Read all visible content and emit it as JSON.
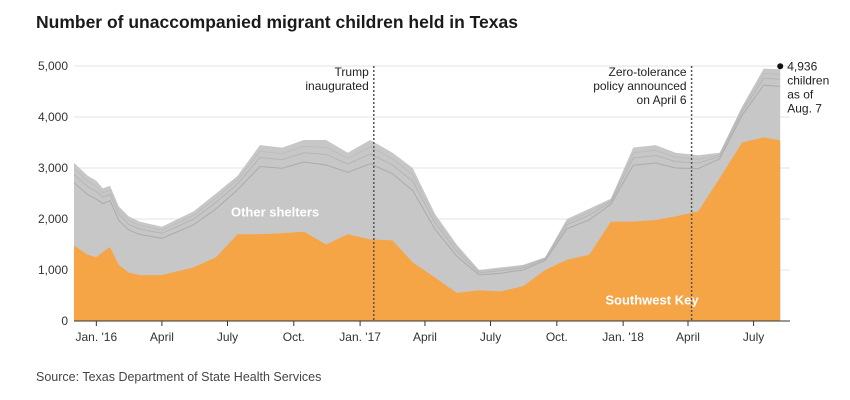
{
  "chart_data": {
    "type": "area",
    "title": "Number of unaccompanied migrant children held in Texas",
    "source": "Source: Texas Department of State Health Services",
    "y_ticks": [
      "0",
      "1,000",
      "2,000",
      "3,000",
      "4,000",
      "5,000"
    ],
    "y_tick_values": [
      0,
      1000,
      2000,
      3000,
      4000,
      5000
    ],
    "ylim": [
      0,
      5000
    ],
    "xlim": [
      "2015-12-01",
      "2018-08-15"
    ],
    "x_ticks": [
      {
        "label": "Jan. '16",
        "date": "2016-01-01"
      },
      {
        "label": "April",
        "date": "2016-04-01"
      },
      {
        "label": "July",
        "date": "2016-07-01"
      },
      {
        "label": "Oct.",
        "date": "2016-10-01"
      },
      {
        "label": "Jan. '17",
        "date": "2017-01-01"
      },
      {
        "label": "April",
        "date": "2017-04-01"
      },
      {
        "label": "July",
        "date": "2017-07-01"
      },
      {
        "label": "Oct.",
        "date": "2017-10-01"
      },
      {
        "label": "Jan. '18",
        "date": "2018-01-01"
      },
      {
        "label": "April",
        "date": "2018-04-01"
      },
      {
        "label": "July",
        "date": "2018-07-01"
      }
    ],
    "x": [
      "2015-12-01",
      "2015-12-20",
      "2016-01-01",
      "2016-01-10",
      "2016-01-20",
      "2016-02-01",
      "2016-02-15",
      "2016-03-01",
      "2016-04-01",
      "2016-05-15",
      "2016-06-15",
      "2016-07-15",
      "2016-08-15",
      "2016-09-15",
      "2016-10-15",
      "2016-11-15",
      "2016-12-15",
      "2017-01-15",
      "2017-02-15",
      "2017-03-15",
      "2017-04-15",
      "2017-05-15",
      "2017-06-15",
      "2017-07-15",
      "2017-08-15",
      "2017-09-15",
      "2017-10-15",
      "2017-11-15",
      "2017-12-15",
      "2018-01-15",
      "2018-02-15",
      "2018-03-15",
      "2018-04-15",
      "2018-05-15",
      "2018-06-15",
      "2018-07-15",
      "2018-08-07"
    ],
    "series": [
      {
        "name": "Southwest Key",
        "color": "#f5a446",
        "values": [
          1480,
          1300,
          1250,
          1350,
          1450,
          1100,
          950,
          900,
          900,
          1050,
          1250,
          1700,
          1700,
          1720,
          1750,
          1500,
          1700,
          1600,
          1580,
          1150,
          850,
          550,
          600,
          580,
          680,
          1000,
          1200,
          1300,
          1950,
          1950,
          1980,
          2050,
          2150,
          2800,
          3500,
          3600,
          3540
        ]
      },
      {
        "name": "Other shelters",
        "color": "#c7c7c7",
        "values": [
          3100,
          2850,
          2750,
          2600,
          2650,
          2250,
          2050,
          1950,
          1850,
          2150,
          2500,
          2850,
          3450,
          3400,
          3550,
          3550,
          3300,
          3550,
          3300,
          3000,
          2100,
          1500,
          1000,
          1050,
          1100,
          1250,
          2000,
          2200,
          2400,
          3400,
          3450,
          3300,
          3250,
          3300,
          4200,
          4950,
          4936
        ]
      }
    ],
    "labels": {
      "southwest": "Southwest Key",
      "other": "Other shelters"
    },
    "annotations": [
      {
        "line1": "Trump",
        "line2": "inaugurated",
        "date": "2017-01-20"
      },
      {
        "line1": "Zero-tolerance",
        "line2": "policy announced",
        "line3": "on April 6",
        "date": "2018-04-06"
      }
    ],
    "endpoint": {
      "date": "2018-08-07",
      "value": 4936,
      "lines": [
        "4,936",
        "children",
        "as of",
        "Aug. 7"
      ]
    }
  }
}
